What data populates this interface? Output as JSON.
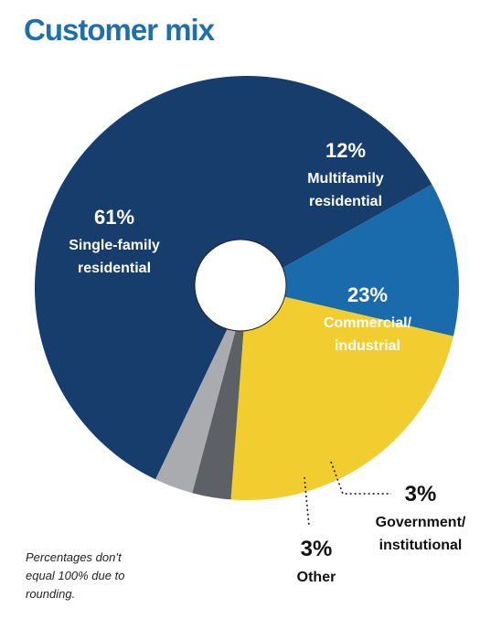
{
  "chart_data": {
    "type": "pie",
    "title": "Customer mix",
    "donut": true,
    "slices": [
      {
        "pct": "61%",
        "value": 61,
        "label": [
          "Single-family",
          "residential"
        ],
        "color": "#163d6b"
      },
      {
        "pct": "12%",
        "value": 12,
        "label": [
          "Multifamily",
          "residential"
        ],
        "color": "#1a6bac"
      },
      {
        "pct": "23%",
        "value": 23,
        "label": [
          "Commercial/",
          "industrial"
        ],
        "color": "#f1cd30"
      },
      {
        "pct": "3%",
        "value": 3,
        "label": [
          "Government/",
          "institutional"
        ],
        "color": "#5d6064"
      },
      {
        "pct": "3%",
        "value": 3,
        "label": [
          "Other"
        ],
        "color": "#a9abae"
      }
    ]
  },
  "footnote": [
    "Percentages don’t",
    "equal 100% due to",
    "rounding."
  ]
}
